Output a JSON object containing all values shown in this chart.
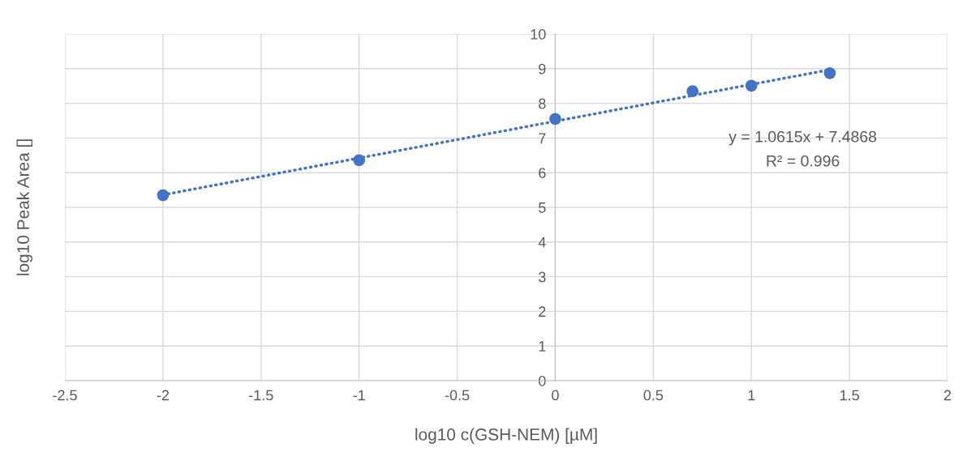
{
  "chart_data": {
    "type": "scatter",
    "xlabel": "log10 c(GSH-NEM) [µM]",
    "ylabel": "log10 Peak Area []",
    "x": [
      -2,
      -1,
      0,
      0.7,
      1,
      1.4
    ],
    "series": [
      {
        "color": "#4472c4",
        "values": [
          5.35,
          6.36,
          7.55,
          8.35,
          8.51,
          8.87
        ],
        "marker": "circle"
      },
      {
        "type": "line",
        "color": "#4472c4",
        "x": [
          -2,
          1.4
        ],
        "values": [
          5.36,
          8.97
        ],
        "line_style": "dotted",
        "marker": "none"
      }
    ],
    "annotations": [
      "y = 1.0615x + 7.4868",
      "R² = 0.996"
    ],
    "xlim": [
      -2.5,
      2
    ],
    "xticks": [
      -2.5,
      -2,
      -1.5,
      -1,
      -0.5,
      0,
      0.5,
      1,
      1.5,
      2
    ],
    "ylim": [
      0,
      10
    ],
    "yticks": [
      0,
      1,
      2,
      3,
      4,
      5,
      6,
      7,
      8,
      9,
      10
    ],
    "grid": true,
    "legend": false
  }
}
